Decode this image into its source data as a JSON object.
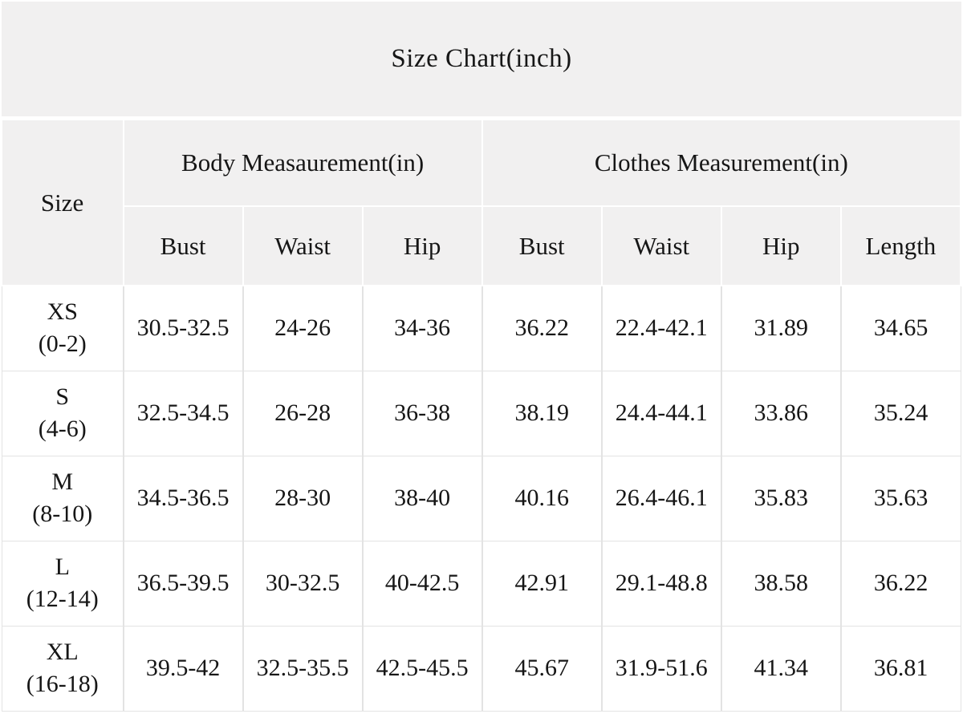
{
  "title": "Size Chart(inch)",
  "colors": {
    "header_background": "#f1f0f0",
    "cell_background": "#ffffff",
    "grid_line": "#e3e3e3",
    "separator": "#ffffff",
    "text": "#161616"
  },
  "table": {
    "size_header": "Size",
    "group_headers": [
      "Body Measaurement(in)",
      "Clothes Measurement(in)"
    ],
    "sub_headers": [
      "Bust",
      "Waist",
      "Hip",
      "Bust",
      "Waist",
      "Hip",
      "Length"
    ],
    "rows": [
      {
        "size": "XS",
        "range": "(0-2)",
        "values": [
          "30.5-32.5",
          "24-26",
          "34-36",
          "36.22",
          "22.4-42.1",
          "31.89",
          "34.65"
        ]
      },
      {
        "size": "S",
        "range": "(4-6)",
        "values": [
          "32.5-34.5",
          "26-28",
          "36-38",
          "38.19",
          "24.4-44.1",
          "33.86",
          "35.24"
        ]
      },
      {
        "size": "M",
        "range": "(8-10)",
        "values": [
          "34.5-36.5",
          "28-30",
          "38-40",
          "40.16",
          "26.4-46.1",
          "35.83",
          "35.63"
        ]
      },
      {
        "size": "L",
        "range": "(12-14)",
        "values": [
          "36.5-39.5",
          "30-32.5",
          "40-42.5",
          "42.91",
          "29.1-48.8",
          "38.58",
          "36.22"
        ]
      },
      {
        "size": "XL",
        "range": "(16-18)",
        "values": [
          "39.5-42",
          "32.5-35.5",
          "42.5-45.5",
          "45.67",
          "31.9-51.6",
          "41.34",
          "36.81"
        ]
      }
    ]
  },
  "chart_data": {
    "type": "table",
    "title": "Size Chart(inch)",
    "column_groups": [
      {
        "label": "Size",
        "columns": [
          "Size"
        ]
      },
      {
        "label": "Body Measaurement(in)",
        "columns": [
          "Bust",
          "Waist",
          "Hip"
        ]
      },
      {
        "label": "Clothes Measurement(in)",
        "columns": [
          "Bust",
          "Waist",
          "Hip",
          "Length"
        ]
      }
    ],
    "rows": [
      [
        "XS (0-2)",
        "30.5-32.5",
        "24-26",
        "34-36",
        "36.22",
        "22.4-42.1",
        "31.89",
        "34.65"
      ],
      [
        "S (4-6)",
        "32.5-34.5",
        "26-28",
        "36-38",
        "38.19",
        "24.4-44.1",
        "33.86",
        "35.24"
      ],
      [
        "M (8-10)",
        "34.5-36.5",
        "28-30",
        "38-40",
        "40.16",
        "26.4-46.1",
        "35.83",
        "35.63"
      ],
      [
        "L (12-14)",
        "36.5-39.5",
        "30-32.5",
        "40-42.5",
        "42.91",
        "29.1-48.8",
        "38.58",
        "36.22"
      ],
      [
        "XL (16-18)",
        "39.5-42",
        "32.5-35.5",
        "42.5-45.5",
        "45.67",
        "31.9-51.6",
        "41.34",
        "36.81"
      ]
    ],
    "units": "inches",
    "layout": "grouped-header size chart table, grey headers, white data cells"
  }
}
